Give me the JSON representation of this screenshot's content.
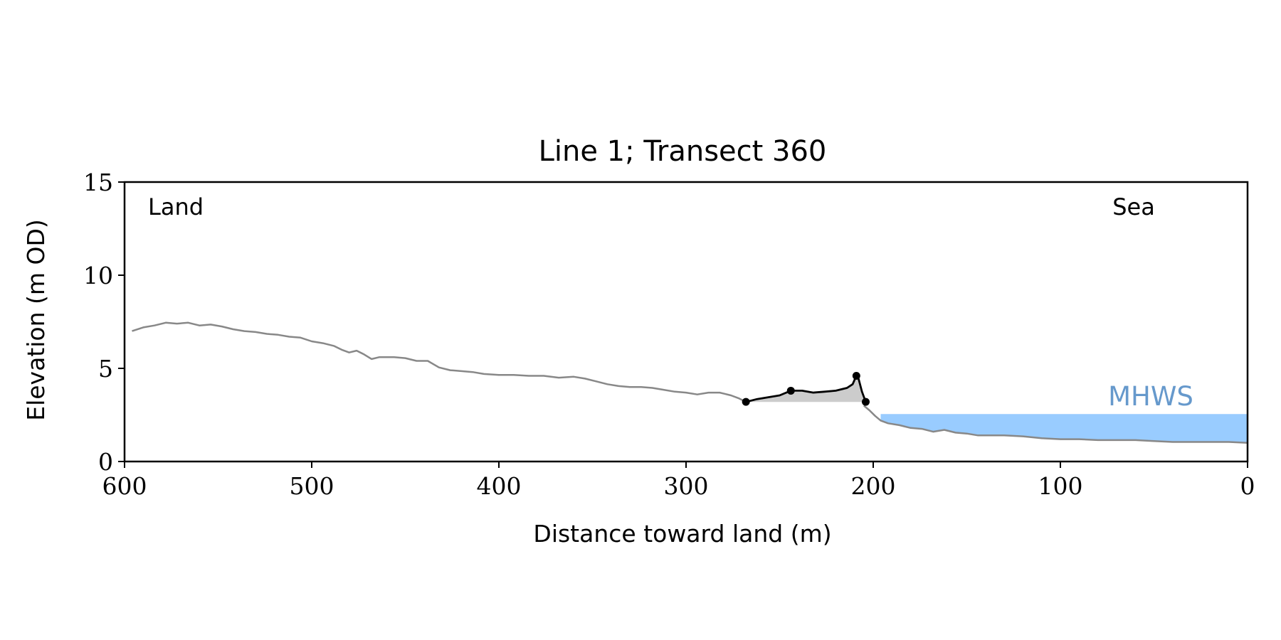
{
  "chart_data": {
    "type": "line",
    "title": "Line 1; Transect 360",
    "xlabel": "Distance toward land (m)",
    "ylabel": "Elevation (m OD)",
    "xlim": [
      600,
      0
    ],
    "ylim": [
      0,
      15
    ],
    "x_ticks": [
      600,
      500,
      400,
      300,
      200,
      100,
      0
    ],
    "y_ticks": [
      0,
      5,
      10,
      15
    ],
    "grid": false,
    "annotations": {
      "land": "Land",
      "sea": "Sea",
      "mhws_label": "MHWS"
    },
    "mhws": {
      "level": 2.55,
      "x_from": 196,
      "x_to": 0
    },
    "colors": {
      "profile": "#888888",
      "dune": "#000000",
      "dune_fill": "#cccccc",
      "water": "#99ccff",
      "mhws_text": "#6699cc",
      "axis": "#000000"
    },
    "series": [
      {
        "values": [
          [
            596,
            7.0
          ],
          [
            590,
            7.2
          ],
          [
            584,
            7.3
          ],
          [
            578,
            7.45
          ],
          [
            572,
            7.4
          ],
          [
            566,
            7.45
          ],
          [
            560,
            7.3
          ],
          [
            554,
            7.35
          ],
          [
            548,
            7.25
          ],
          [
            542,
            7.1
          ],
          [
            536,
            7.0
          ],
          [
            530,
            6.95
          ],
          [
            524,
            6.85
          ],
          [
            518,
            6.8
          ],
          [
            512,
            6.7
          ],
          [
            506,
            6.65
          ],
          [
            500,
            6.45
          ],
          [
            494,
            6.35
          ],
          [
            488,
            6.2
          ],
          [
            484,
            6.0
          ],
          [
            480,
            5.85
          ],
          [
            476,
            5.95
          ],
          [
            472,
            5.75
          ],
          [
            468,
            5.5
          ],
          [
            464,
            5.6
          ],
          [
            456,
            5.6
          ],
          [
            450,
            5.55
          ],
          [
            444,
            5.4
          ],
          [
            438,
            5.4
          ],
          [
            432,
            5.05
          ],
          [
            426,
            4.9
          ],
          [
            420,
            4.85
          ],
          [
            414,
            4.8
          ],
          [
            408,
            4.7
          ],
          [
            400,
            4.65
          ],
          [
            392,
            4.65
          ],
          [
            384,
            4.6
          ],
          [
            376,
            4.6
          ],
          [
            368,
            4.5
          ],
          [
            360,
            4.55
          ],
          [
            354,
            4.45
          ],
          [
            348,
            4.3
          ],
          [
            342,
            4.15
          ],
          [
            336,
            4.05
          ],
          [
            330,
            4.0
          ],
          [
            324,
            4.0
          ],
          [
            318,
            3.95
          ],
          [
            312,
            3.85
          ],
          [
            306,
            3.75
          ],
          [
            300,
            3.7
          ],
          [
            294,
            3.6
          ],
          [
            288,
            3.7
          ],
          [
            282,
            3.7
          ],
          [
            276,
            3.55
          ],
          [
            272,
            3.4
          ],
          [
            268,
            3.2
          ]
        ]
      },
      {
        "values": [
          [
            205,
            3.0
          ],
          [
            202,
            2.75
          ],
          [
            199,
            2.45
          ],
          [
            196,
            2.2
          ],
          [
            192,
            2.05
          ],
          [
            186,
            1.95
          ],
          [
            180,
            1.8
          ],
          [
            174,
            1.75
          ],
          [
            168,
            1.6
          ],
          [
            162,
            1.7
          ],
          [
            156,
            1.55
          ],
          [
            150,
            1.5
          ],
          [
            144,
            1.4
          ],
          [
            138,
            1.4
          ],
          [
            130,
            1.4
          ],
          [
            120,
            1.35
          ],
          [
            110,
            1.25
          ],
          [
            100,
            1.2
          ],
          [
            90,
            1.2
          ],
          [
            80,
            1.15
          ],
          [
            70,
            1.15
          ],
          [
            60,
            1.15
          ],
          [
            50,
            1.1
          ],
          [
            40,
            1.05
          ],
          [
            30,
            1.05
          ],
          [
            20,
            1.05
          ],
          [
            10,
            1.05
          ],
          [
            0,
            1.0
          ]
        ]
      },
      {
        "values": [
          [
            268,
            3.2
          ],
          [
            262,
            3.35
          ],
          [
            256,
            3.45
          ],
          [
            250,
            3.55
          ],
          [
            244,
            3.8
          ],
          [
            238,
            3.8
          ],
          [
            232,
            3.7
          ],
          [
            226,
            3.75
          ],
          [
            220,
            3.8
          ],
          [
            214,
            3.95
          ],
          [
            211,
            4.15
          ],
          [
            209,
            4.6
          ],
          [
            208,
            4.5
          ],
          [
            206,
            3.75
          ],
          [
            204,
            3.2
          ]
        ]
      }
    ],
    "dune_markers": [
      [
        268,
        3.2
      ],
      [
        244,
        3.8
      ],
      [
        209,
        4.6
      ],
      [
        204,
        3.2
      ]
    ],
    "dune_base": [
      [
        268,
        3.2
      ],
      [
        204,
        3.2
      ]
    ]
  }
}
